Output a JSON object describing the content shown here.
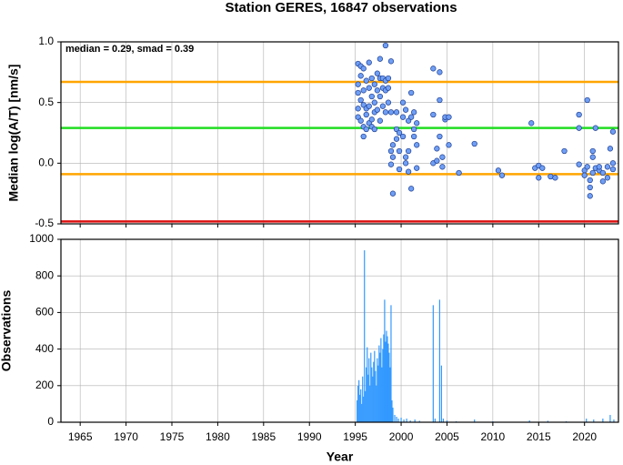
{
  "title": "Station GERES, 16847 observations",
  "chart_data": [
    {
      "type": "scatter",
      "annotation": "median = 0.29, smad = 0.39",
      "ylabel": "Median log(A/T) [nm/s]",
      "xlim": [
        1962.9,
        2023.7
      ],
      "xticks": [
        1965,
        1970,
        1975,
        1980,
        1985,
        1990,
        1995,
        2000,
        2005,
        2010,
        2015,
        2020
      ],
      "ylim": [
        -0.5,
        1.0
      ],
      "yticks": [
        -0.5,
        {
          "value": 0.0,
          "label": "0.0"
        },
        0.5,
        {
          "value": 1.0,
          "label": "1.0"
        }
      ],
      "grid": true,
      "color": "#6f9ef5",
      "hlines": [
        {
          "value": 0.67,
          "color": "#ffa500"
        },
        {
          "value": 0.29,
          "color": "#22dd22"
        },
        {
          "value": -0.09,
          "color": "#ffa500"
        },
        {
          "value": -0.48,
          "color": "#dd1111"
        }
      ],
      "x": [
        1995.3,
        1995.3,
        1995.3,
        1995.3,
        1995.3,
        1995.6,
        1995.6,
        1995.6,
        1995.6,
        1995.9,
        1995.9,
        1995.9,
        1995.9,
        1995.9,
        1996.2,
        1996.2,
        1996.2,
        1996.2,
        1996.5,
        1996.5,
        1996.5,
        1996.5,
        1996.8,
        1996.8,
        1996.8,
        1996.8,
        1997.1,
        1997.1,
        1997.1,
        1997.1,
        1997.4,
        1997.4,
        1997.4,
        1997.7,
        1997.7,
        1997.7,
        1997.7,
        1998.0,
        1998.0,
        1998.0,
        1998.3,
        1998.3,
        1998.3,
        1998.3,
        1998.6,
        1998.6,
        1998.6,
        1998.9,
        1998.9,
        1998.9,
        1998.9,
        1999.1,
        1999.1,
        1999.1,
        1999.5,
        1999.5,
        1999.5,
        1999.8,
        1999.8,
        1999.8,
        2000.2,
        2000.2,
        2000.2,
        2000.5,
        2000.5,
        2000.5,
        2000.8,
        2000.8,
        2000.8,
        2001.1,
        2001.1,
        2001.1,
        2001.4,
        2001.4,
        2001.4,
        2001.7,
        2001.7,
        2001.7,
        2003.5,
        2003.5,
        2003.5,
        2003.9,
        2003.9,
        2004.2,
        2004.2,
        2004.2,
        2004.5,
        2004.5,
        2004.8,
        2004.8,
        2005.2,
        2005.2,
        2006.3,
        2008.0,
        2010.6,
        2011.0,
        2014.2,
        2014.6,
        2015.0,
        2015.0,
        2015.4,
        2016.3,
        2016.8,
        2017.8,
        2019.4,
        2019.4,
        2019.4,
        2020.0,
        2020.0,
        2020.3,
        2020.3,
        2020.6,
        2020.6,
        2020.6,
        2020.9,
        2020.9,
        2020.9,
        2021.2,
        2021.2,
        2021.6,
        2021.6,
        2022.0,
        2022.0,
        2022.5,
        2022.5,
        2022.8,
        2023.1,
        2023.1,
        2023.1
      ],
      "values": [
        0.58,
        0.65,
        0.82,
        0.38,
        0.45,
        0.8,
        0.72,
        0.35,
        0.52,
        0.78,
        0.48,
        0.3,
        0.22,
        0.6,
        0.45,
        0.68,
        0.4,
        0.28,
        0.62,
        0.83,
        0.47,
        0.33,
        0.7,
        0.55,
        0.36,
        0.3,
        0.65,
        0.5,
        0.42,
        0.28,
        0.74,
        0.6,
        0.44,
        0.86,
        0.7,
        0.55,
        0.35,
        0.62,
        0.7,
        0.47,
        0.97,
        0.68,
        0.6,
        0.42,
        0.7,
        0.62,
        0.5,
        0.84,
        0.42,
        0.1,
        -0.01,
        -0.25,
        0.05,
        0.15,
        0.42,
        0.28,
        0.2,
        0.1,
        -0.05,
        0.25,
        0.5,
        0.38,
        0.22,
        0.44,
        0.05,
        0.0,
        0.35,
        0.1,
        -0.07,
        0.58,
        -0.21,
        0.38,
        0.28,
        0.22,
        0.42,
        0.15,
        -0.04,
        0.33,
        0.78,
        0.4,
        0.0,
        0.12,
        0.02,
        0.75,
        0.52,
        0.22,
        0.05,
        -0.03,
        0.36,
        0.38,
        0.15,
        0.38,
        -0.08,
        0.16,
        -0.06,
        -0.1,
        0.33,
        -0.04,
        -0.12,
        -0.02,
        -0.04,
        -0.11,
        -0.12,
        0.1,
        0.4,
        0.29,
        -0.01,
        -0.06,
        -0.1,
        0.52,
        -0.03,
        -0.2,
        -0.27,
        -0.14,
        0.05,
        0.1,
        -0.08,
        0.29,
        -0.04,
        -0.06,
        -0.03,
        -0.08,
        -0.15,
        -0.03,
        -0.12,
        0.12,
        0.26,
        0.0,
        -0.05
      ]
    },
    {
      "type": "bar",
      "xlabel": "Year",
      "ylabel": "Observations",
      "xlim": [
        1962.9,
        2023.7
      ],
      "xticks": [
        1965,
        1970,
        1975,
        1980,
        1985,
        1990,
        1995,
        2000,
        2005,
        2010,
        2015,
        2020
      ],
      "ylim": [
        0,
        1000
      ],
      "yticks": [
        0,
        200,
        400,
        600,
        800,
        1000
      ],
      "grid": true,
      "color": "#3399ff",
      "x": [
        1995.2,
        1995.3,
        1995.4,
        1995.5,
        1995.6,
        1995.7,
        1995.8,
        1995.9,
        1996.0,
        1996.1,
        1996.2,
        1996.3,
        1996.4,
        1996.5,
        1996.6,
        1996.7,
        1996.8,
        1996.9,
        1997.0,
        1997.1,
        1997.2,
        1997.3,
        1997.4,
        1997.5,
        1997.6,
        1997.7,
        1997.8,
        1997.9,
        1998.0,
        1998.1,
        1998.2,
        1998.3,
        1998.4,
        1998.5,
        1998.6,
        1998.7,
        1998.8,
        1998.9,
        1999.0,
        1999.1,
        1999.3,
        1999.5,
        1999.7,
        2000.0,
        2000.3,
        2000.6,
        2001.0,
        2001.5,
        2002.0,
        2003.5,
        2003.7,
        2004.2,
        2004.4,
        2004.6,
        2005.0,
        2006.0,
        2008.0,
        2010.0,
        2014.0,
        2016.0,
        2018.0,
        2020.2,
        2021.0,
        2022.0,
        2022.8,
        2023.2
      ],
      "values": [
        120,
        200,
        230,
        150,
        180,
        100,
        250,
        140,
        940,
        170,
        300,
        410,
        260,
        350,
        200,
        380,
        300,
        250,
        330,
        390,
        280,
        200,
        350,
        310,
        420,
        380,
        460,
        300,
        400,
        480,
        670,
        440,
        500,
        470,
        430,
        380,
        300,
        640,
        120,
        80,
        40,
        30,
        20,
        25,
        15,
        20,
        10,
        15,
        8,
        640,
        20,
        670,
        310,
        20,
        10,
        5,
        15,
        5,
        10,
        8,
        5,
        20,
        15,
        20,
        40,
        15
      ]
    }
  ]
}
